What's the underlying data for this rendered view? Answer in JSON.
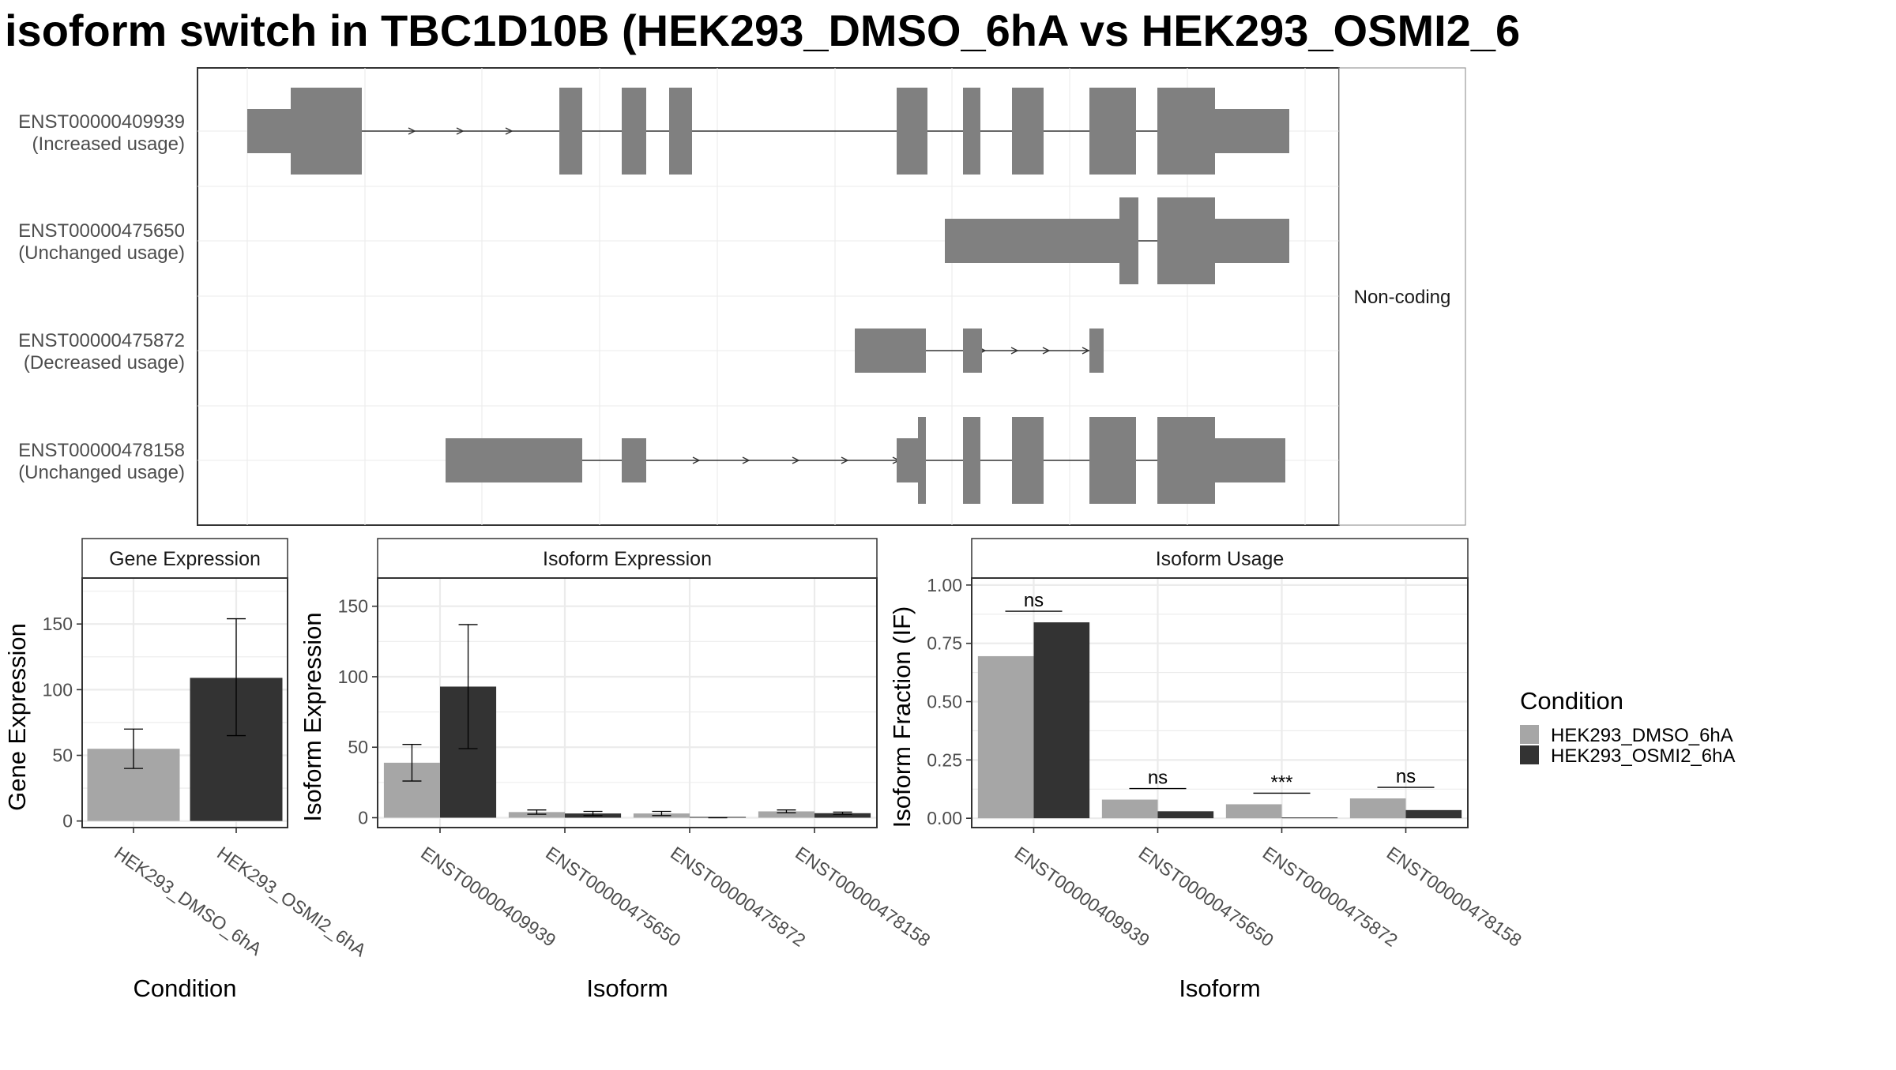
{
  "title": "isoform switch in TBC1D10B (HEK293_DMSO_6hA vs HEK293_OSMI2_6",
  "colors": {
    "DMSO": "#a6a6a6",
    "OSMI2": "#333333",
    "exon": "#808080"
  },
  "structure": {
    "side_label": "Non-coding",
    "transcripts": [
      {
        "id": "ENST00000409939",
        "usage": "(Increased usage)"
      },
      {
        "id": "ENST00000475650",
        "usage": "(Unchanged usage)"
      },
      {
        "id": "ENST00000475872",
        "usage": "(Decreased usage)"
      },
      {
        "id": "ENST00000478158",
        "usage": "(Unchanged usage)"
      }
    ]
  },
  "chart_data": [
    {
      "type": "bar",
      "strip": "Gene Expression",
      "xlabel": "Condition",
      "ylabel": "Gene Expression",
      "categories": [
        "HEK293_DMSO_6hA",
        "HEK293_OSMI2_6hA"
      ],
      "values": [
        55,
        109
      ],
      "errors": [
        [
          40,
          70
        ],
        [
          65,
          154
        ]
      ],
      "ylim": [
        -5,
        185
      ],
      "yticks": [
        "0",
        "50",
        "100",
        "150"
      ]
    },
    {
      "type": "bar",
      "strip": "Isoform Expression",
      "xlabel": "Isoform",
      "ylabel": "Isoform Expression",
      "categories": [
        "ENST00000409939",
        "ENST00000475650",
        "ENST00000475872",
        "ENST00000478158"
      ],
      "series": [
        {
          "name": "HEK293_DMSO_6hA",
          "values": [
            39,
            4,
            3,
            4.5
          ],
          "errors": [
            [
              26,
              52
            ],
            [
              2.5,
              5.5
            ],
            [
              1.5,
              4.5
            ],
            [
              3.5,
              5.5
            ]
          ]
        },
        {
          "name": "HEK293_OSMI2_6hA",
          "values": [
            93,
            3,
            0,
            3.2
          ],
          "errors": [
            [
              49,
              137
            ],
            [
              1.5,
              4.5
            ],
            [
              0,
              0
            ],
            [
              2.5,
              4
            ]
          ]
        }
      ],
      "ylim": [
        -7,
        170
      ],
      "yticks": [
        "0",
        "50",
        "100",
        "150"
      ]
    },
    {
      "type": "bar",
      "strip": "Isoform Usage",
      "xlabel": "Isoform",
      "ylabel": "Isoform Fraction (IF)",
      "categories": [
        "ENST00000409939",
        "ENST00000475650",
        "ENST00000475872",
        "ENST00000478158"
      ],
      "series": [
        {
          "name": "HEK293_DMSO_6hA",
          "values": [
            0.695,
            0.08,
            0.06,
            0.085
          ]
        },
        {
          "name": "HEK293_OSMI2_6hA",
          "values": [
            0.84,
            0.03,
            0.0,
            0.035
          ]
        }
      ],
      "significance": [
        "ns",
        "ns",
        "***",
        "ns"
      ],
      "ylim": [
        -0.04,
        1.03
      ],
      "yticks": [
        "0.00",
        "0.25",
        "0.50",
        "0.75",
        "1.00"
      ]
    }
  ],
  "legend": {
    "title": "Condition",
    "items": [
      "HEK293_DMSO_6hA",
      "HEK293_OSMI2_6hA"
    ]
  }
}
